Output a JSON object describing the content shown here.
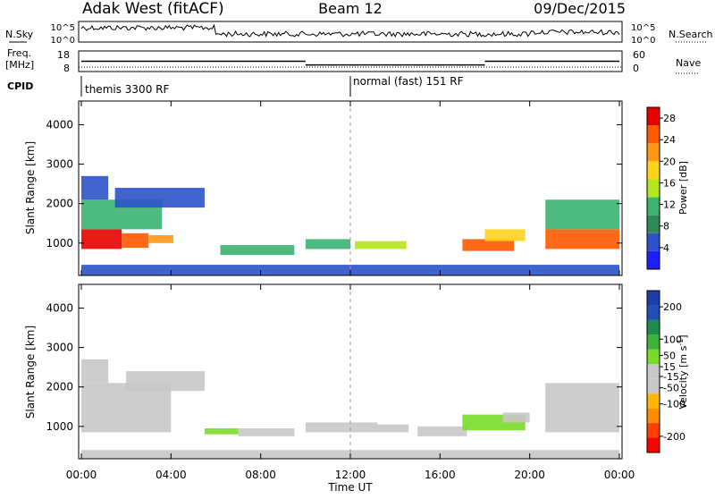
{
  "header": {
    "station": "Adak West (fitACF)",
    "beam": "Beam 12",
    "date": "09/Dec/2015"
  },
  "noise_panel": {
    "left_label": "N.Sky",
    "right_label": "N.Search",
    "left_ticks": [
      "10^5",
      "10^0"
    ],
    "right_ticks": [
      "10^5",
      "10^0"
    ]
  },
  "freq_panel": {
    "left_label_line1": "Freq.",
    "left_label_line2": "[MHz]",
    "right_label": "Nave",
    "left_ticks": [
      "18",
      "8"
    ],
    "right_ticks": [
      "60",
      "0"
    ],
    "freq_segments": [
      {
        "from": "00:00",
        "to": "10:00",
        "mhz": 13.0
      },
      {
        "from": "10:00",
        "to": "18:00",
        "mhz": 11.2
      },
      {
        "from": "18:00",
        "to": "24:00",
        "mhz": 13.0
      }
    ]
  },
  "cpid": {
    "label": "CPID",
    "segments": [
      {
        "start": "00:00",
        "end": "12:00",
        "label": "themis 3300 RF"
      },
      {
        "start": "12:00",
        "end": "24:00",
        "label": "normal (fast) 151 RF"
      }
    ]
  },
  "colors": {
    "power": [
      "#1e1eff",
      "#2b52c8",
      "#2e8b57",
      "#3cb371",
      "#b4e61e",
      "#ffd21e",
      "#ff9614",
      "#ff5a00",
      "#e60000"
    ],
    "velocity": [
      "#ff0000",
      "#ff4000",
      "#ff8c00",
      "#ffb400",
      "#c8c8c8",
      "#c8c8c8",
      "#78dc28",
      "#3cb43c",
      "#1e8c50",
      "#2050b4",
      "#1e3caa"
    ]
  },
  "chart_data": [
    {
      "type": "heatmap",
      "name": "power",
      "xlabel": "",
      "ylabel": "Slant Range [km]",
      "xlim": [
        "00:00",
        "24:00"
      ],
      "ylim": [
        180,
        4600
      ],
      "yticks": [
        1000,
        2000,
        3000,
        4000
      ],
      "xticks": [
        "00:00",
        "04:00",
        "08:00",
        "12:00",
        "16:00",
        "20:00",
        "00:00"
      ],
      "colorbar": {
        "label": "Power [dB]",
        "ticks": [
          4,
          8,
          12,
          16,
          20,
          24,
          28
        ],
        "range": [
          0,
          30
        ]
      },
      "regions": [
        {
          "t0": 0.0,
          "t1": 1.8,
          "r0": 850,
          "r1": 1350,
          "value": 27
        },
        {
          "t0": 1.8,
          "t1": 3.0,
          "r0": 880,
          "r1": 1250,
          "value": 25
        },
        {
          "t0": 3.0,
          "t1": 4.1,
          "r0": 1000,
          "r1": 1200,
          "value": 20
        },
        {
          "t0": 0.0,
          "t1": 3.6,
          "r0": 1350,
          "r1": 2100,
          "value": 10
        },
        {
          "t0": 0.0,
          "t1": 1.2,
          "r0": 2100,
          "r1": 2700,
          "value": 6
        },
        {
          "t0": 1.5,
          "t1": 5.5,
          "r0": 1900,
          "r1": 2400,
          "value": 4
        },
        {
          "t0": 6.2,
          "t1": 9.5,
          "r0": 700,
          "r1": 950,
          "value": 12
        },
        {
          "t0": 10.0,
          "t1": 12.0,
          "r0": 850,
          "r1": 1100,
          "value": 10
        },
        {
          "t0": 12.2,
          "t1": 14.5,
          "r0": 850,
          "r1": 1050,
          "value": 14
        },
        {
          "t0": 17.0,
          "t1": 19.3,
          "r0": 800,
          "r1": 1100,
          "value": 25
        },
        {
          "t0": 18.0,
          "t1": 19.8,
          "r0": 1050,
          "r1": 1350,
          "value": 17
        },
        {
          "t0": 20.7,
          "t1": 24.0,
          "r0": 850,
          "r1": 1350,
          "value": 26
        },
        {
          "t0": 20.7,
          "t1": 24.0,
          "r0": 1350,
          "r1": 2100,
          "value": 11
        },
        {
          "t0": 0.0,
          "t1": 24.0,
          "r0": 180,
          "r1": 450,
          "value": 5
        }
      ]
    },
    {
      "type": "heatmap",
      "name": "velocity",
      "xlabel": "Time UT",
      "ylabel": "Slant Range [km]",
      "xlim": [
        "00:00",
        "24:00"
      ],
      "ylim": [
        180,
        4600
      ],
      "yticks": [
        1000,
        2000,
        3000,
        4000
      ],
      "xticks": [
        "00:00",
        "04:00",
        "08:00",
        "12:00",
        "16:00",
        "20:00",
        "00:00"
      ],
      "colorbar": {
        "label": "Velocity [m s^-1]",
        "ticks": [
          -200,
          -100,
          -50,
          -15,
          15,
          50,
          100,
          200
        ],
        "range": [
          -250,
          250
        ]
      },
      "regions": [
        {
          "t0": 0.0,
          "t1": 4.0,
          "r0": 850,
          "r1": 2100,
          "value": 0
        },
        {
          "t0": 0.0,
          "t1": 1.2,
          "r0": 2100,
          "r1": 2700,
          "value": 0
        },
        {
          "t0": 2.0,
          "t1": 5.5,
          "r0": 1900,
          "r1": 2400,
          "value": 0
        },
        {
          "t0": 5.5,
          "t1": 7.0,
          "r0": 800,
          "r1": 950,
          "value": 30
        },
        {
          "t0": 7.0,
          "t1": 9.5,
          "r0": 750,
          "r1": 950,
          "value": -30
        },
        {
          "t0": 10.0,
          "t1": 12.0,
          "r0": 850,
          "r1": 1100,
          "value": -40
        },
        {
          "t0": 12.0,
          "t1": 13.2,
          "r0": 850,
          "r1": 1100,
          "value": -60
        },
        {
          "t0": 13.2,
          "t1": 14.6,
          "r0": 850,
          "r1": 1050,
          "value": -30
        },
        {
          "t0": 15.0,
          "t1": 17.2,
          "r0": 750,
          "r1": 1000,
          "value": -10
        },
        {
          "t0": 17.0,
          "t1": 19.8,
          "r0": 900,
          "r1": 1300,
          "value": 40
        },
        {
          "t0": 18.8,
          "t1": 20.0,
          "r0": 1100,
          "r1": 1350,
          "value": 20
        },
        {
          "t0": 20.7,
          "t1": 24.0,
          "r0": 850,
          "r1": 2100,
          "value": 0
        },
        {
          "t0": 0.0,
          "t1": 24.0,
          "r0": 180,
          "r1": 400,
          "value": -40
        }
      ]
    }
  ]
}
